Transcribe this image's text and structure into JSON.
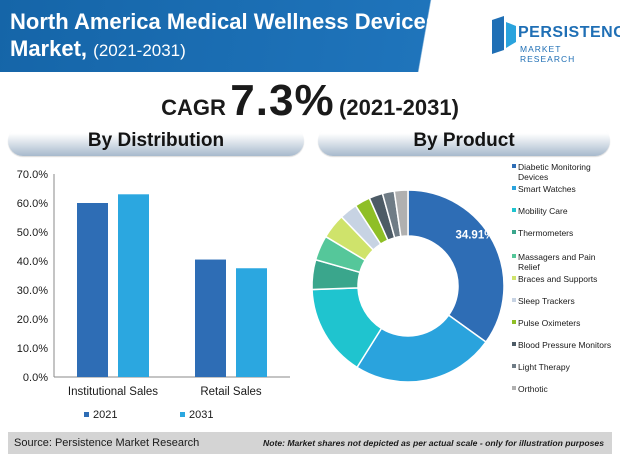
{
  "header": {
    "title_main": "North America Medical Wellness Devices Market,",
    "title_years": "(2021-2031)"
  },
  "logo": {
    "word": "PERSISTENCE",
    "sub": "MARKET RESEARCH"
  },
  "cagr": {
    "label": "CAGR",
    "value": "7.3%",
    "period": "(2021-2031)"
  },
  "panels": {
    "left_title": "By Distribution",
    "right_title": "By Product"
  },
  "footer": {
    "source": "Source: Persistence Market Research",
    "note": "Note: Market shares not depicted as per actual scale - only for illustration purposes"
  },
  "colors": {
    "header_blue": "#1f74bb",
    "series_2021": "#2e6db5",
    "series_2031": "#2ba7e0"
  },
  "chart_data": [
    {
      "type": "bar",
      "title": "By Distribution",
      "categories": [
        "Institutional Sales",
        "Retail Sales"
      ],
      "series": [
        {
          "name": "2021",
          "values": [
            60,
            40.5
          ],
          "color": "#2e6db5"
        },
        {
          "name": "2031",
          "values": [
            63,
            37.5
          ],
          "color": "#2ba7e0"
        }
      ],
      "y_ticks": [
        "70.0%",
        "60.0%",
        "50.0%",
        "40.0%",
        "30.0%",
        "20.0%",
        "10.0%",
        "0.0%"
      ],
      "ylim": [
        0,
        70
      ],
      "grid": false,
      "legend": "bottom"
    },
    {
      "type": "pie",
      "title": "By Product",
      "donut": true,
      "data_label": "34.91%",
      "slices": [
        {
          "label": "Diabetic Monitoring Devices",
          "value": 34.91,
          "color": "#2e6db5"
        },
        {
          "label": "Smart Watches",
          "value": 24.0,
          "color": "#2aa3dd"
        },
        {
          "label": "Mobility Care",
          "value": 15.5,
          "color": "#1fc4cf"
        },
        {
          "label": "Thermometers",
          "value": 5.0,
          "color": "#3aa68c"
        },
        {
          "label": "Massagers and Pain Relief",
          "value": 4.2,
          "color": "#55c79a"
        },
        {
          "label": "Braces and Supports",
          "value": 4.2,
          "color": "#cfe36b"
        },
        {
          "label": "Sleep Trackers",
          "value": 3.0,
          "color": "#c7d3e3"
        },
        {
          "label": "Pulse Oximeters",
          "value": 2.6,
          "color": "#8fbf26"
        },
        {
          "label": "Blood Pressure Monitors",
          "value": 2.3,
          "color": "#4d5b66"
        },
        {
          "label": "Light Therapy",
          "value": 2.0,
          "color": "#6f7c86"
        },
        {
          "label": "Orthotic",
          "value": 2.29,
          "color": "#b0b0b0"
        }
      ],
      "legend": "right"
    }
  ]
}
